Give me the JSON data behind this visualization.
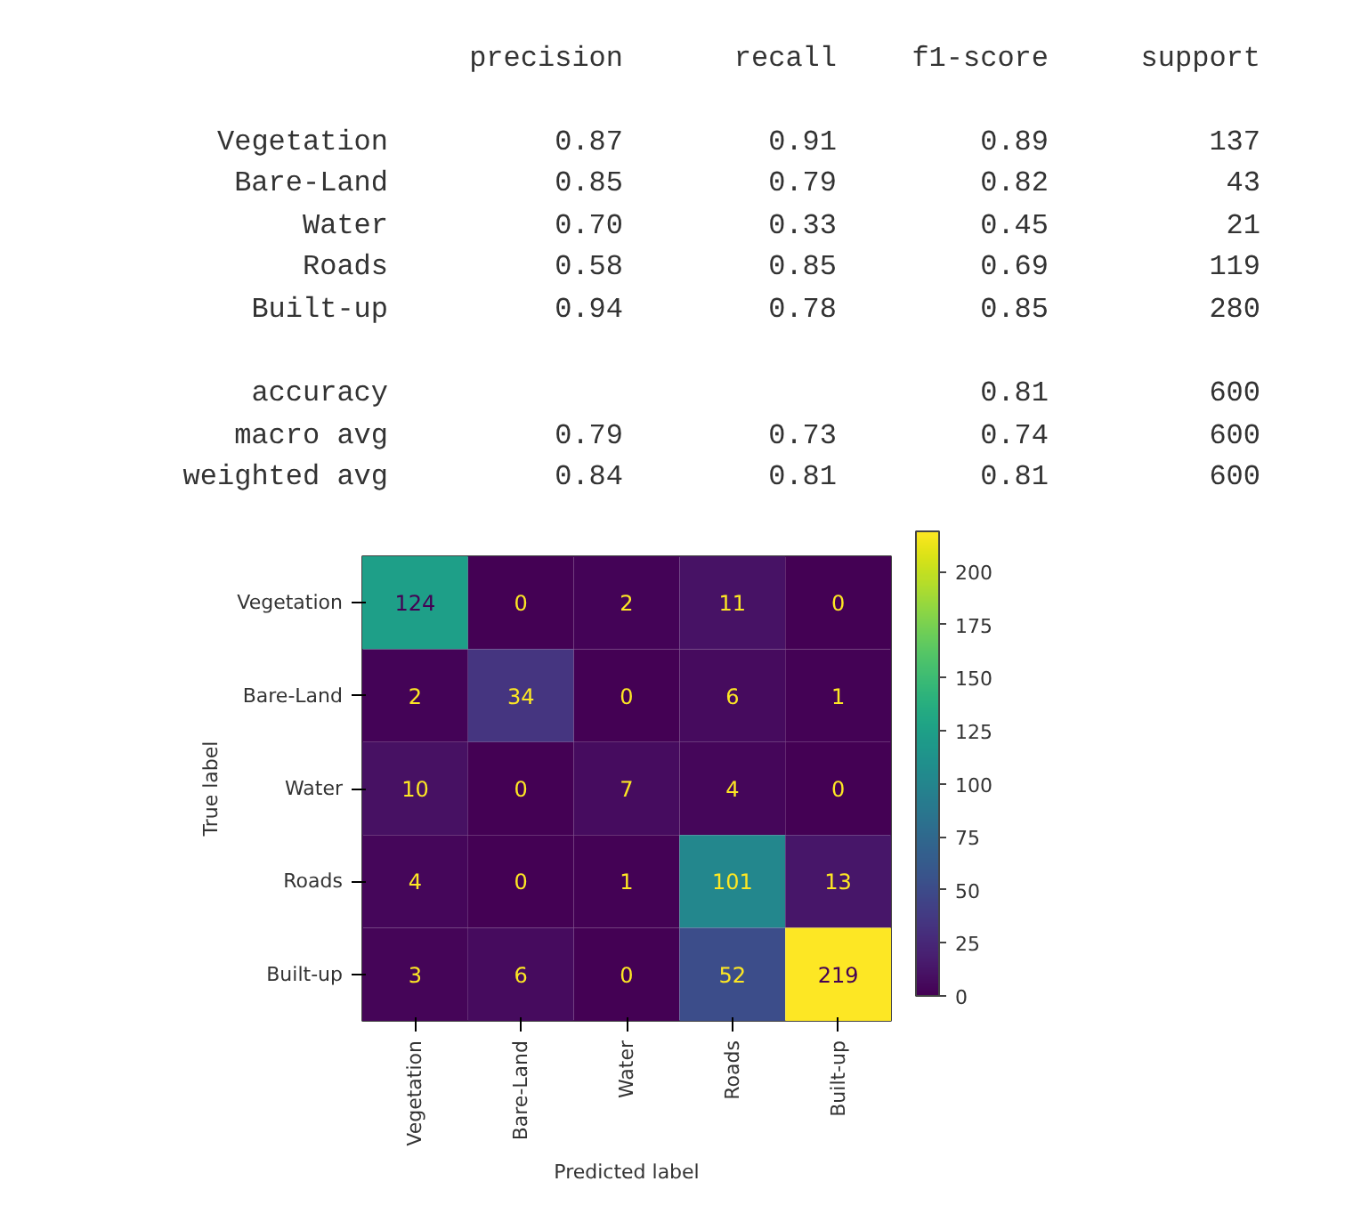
{
  "chart_data": [
    {
      "type": "other",
      "categories": [
        "precision",
        "recall",
        "f1-score",
        "support"
      ],
      "y_categories": [
        "Vegetation",
        "Bare-Land",
        "Water",
        "Roads",
        "Built-up",
        null,
        "accuracy",
        "macro avg",
        "weighted avg"
      ],
      "cell_labels": [
        [
          "0.87",
          "0.91",
          "0.89",
          "137"
        ],
        [
          "0.85",
          "0.79",
          "0.82",
          "43"
        ],
        [
          "0.70",
          "0.33",
          "0.45",
          "21"
        ],
        [
          "0.58",
          "0.85",
          "0.69",
          "119"
        ],
        [
          "0.94",
          "0.78",
          "0.85",
          "280"
        ],
        [
          null,
          null,
          null,
          null
        ],
        [
          null,
          null,
          "0.81",
          "600"
        ],
        [
          "0.79",
          "0.73",
          "0.74",
          "600"
        ],
        [
          "0.84",
          "0.81",
          "0.81",
          "600"
        ]
      ]
    },
    {
      "type": "heatmap",
      "xlabel": "Predicted label",
      "ylabel": "True label",
      "categories": [
        "Vegetation",
        "Bare-Land",
        "Water",
        "Roads",
        "Built-up"
      ],
      "y_categories": [
        "Vegetation",
        "Bare-Land",
        "Water",
        "Roads",
        "Built-up"
      ],
      "cells": [
        [
          124,
          0,
          2,
          11,
          0
        ],
        [
          2,
          34,
          0,
          6,
          1
        ],
        [
          10,
          0,
          7,
          4,
          0
        ],
        [
          4,
          0,
          1,
          101,
          13
        ],
        [
          3,
          6,
          0,
          52,
          219
        ]
      ],
      "clim": [
        0,
        219
      ],
      "cticks": [
        0,
        25,
        50,
        75,
        100,
        125,
        150,
        175,
        200
      ],
      "data_labels": true,
      "grid": false
    }
  ]
}
